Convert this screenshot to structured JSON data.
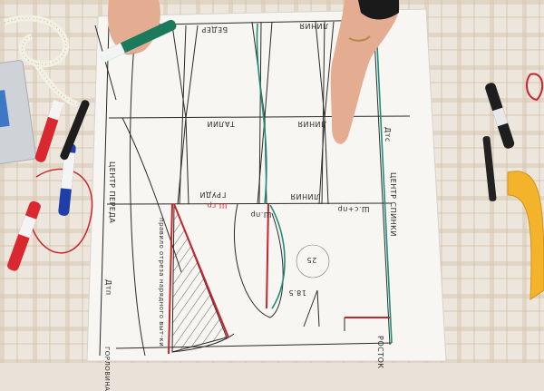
{
  "labels": {
    "bedra": "БЕДЕР",
    "liniya_top": "ЛИНИЯ",
    "talii": "ТАЛИИ",
    "liniya_mid": "ЛИНИЯ",
    "grudi": "ГРУДИ",
    "liniya_chest": "ЛИНИЯ",
    "sh_gr": "Ш.гр",
    "sh_pr": "Ш.пр",
    "sh_plus_pr": "Ш.с+пр",
    "centr_pereda": "ЦЕНТР ПЕРЕДА",
    "centr_spinki": "ЦЕНТР СПИНКИ",
    "dtp": "Дтп",
    "dts": "Дтс",
    "rost": "РОСТОК",
    "pravilo": "правило отреза нарядного выт-ки",
    "gorlovina": "ГОРЛОВИНА",
    "val_25": "25",
    "val_185": "18.5"
  },
  "colors": {
    "tablecloth": "#e9e2d8",
    "paper": "#f7f6f2",
    "line": "#2a2a2a",
    "red": "#c8242b",
    "teal": "#1f8c7a"
  },
  "objects": {
    "tape_measure": "tape-measure",
    "markers": [
      "red-marker",
      "blue-marker",
      "black-marker",
      "black-marker-right",
      "green-marker-in-hand"
    ],
    "ruler": "yellow-curve-ruler"
  }
}
